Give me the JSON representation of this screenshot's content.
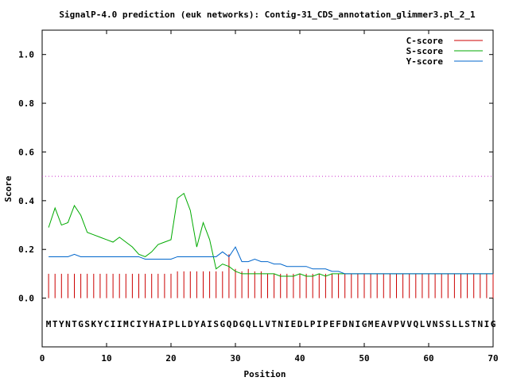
{
  "chart_data": {
    "type": "line",
    "title": "SignalP-4.0 prediction (euk networks): Contig-31_CDS_annotation_glimmer3.pl_2_1",
    "xlabel": "Position",
    "ylabel": "Score",
    "xlim": [
      0,
      70
    ],
    "ylim": [
      -0.2,
      1.1
    ],
    "xticks": [
      0,
      10,
      20,
      30,
      40,
      50,
      60,
      70
    ],
    "yticks": [
      0.0,
      0.2,
      0.4,
      0.6,
      0.8,
      1.0
    ],
    "ytick_labels": [
      "0.0",
      "0.2",
      "0.4",
      "0.6",
      "0.8",
      "1.0"
    ],
    "grid": false,
    "legend_position": "top-right",
    "threshold": 0.5,
    "threshold_color": "#cc33cc",
    "sequence": "MTYNTGSKYCIIMCIYHAIPLLDYAISGQDGQLLVTNIEDLPIPEFDNIGMEAVPVVQLVNSSLLSTNIG",
    "series": [
      {
        "name": "C-score",
        "style": "impulses",
        "color": "#cc0000",
        "values": [
          0.1,
          0.1,
          0.1,
          0.1,
          0.1,
          0.1,
          0.1,
          0.1,
          0.1,
          0.1,
          0.1,
          0.1,
          0.1,
          0.1,
          0.1,
          0.1,
          0.1,
          0.1,
          0.1,
          0.1,
          0.11,
          0.11,
          0.11,
          0.11,
          0.11,
          0.11,
          0.11,
          0.11,
          0.18,
          0.12,
          0.11,
          0.12,
          0.11,
          0.11,
          0.1,
          0.1,
          0.1,
          0.1,
          0.1,
          0.1,
          0.1,
          0.1,
          0.1,
          0.1,
          0.1,
          0.1,
          0.1,
          0.1,
          0.1,
          0.1,
          0.1,
          0.1,
          0.1,
          0.1,
          0.1,
          0.1,
          0.1,
          0.1,
          0.1,
          0.1,
          0.1,
          0.1,
          0.1,
          0.1,
          0.1,
          0.1,
          0.1,
          0.1,
          0.1,
          0.1
        ]
      },
      {
        "name": "S-score",
        "style": "line",
        "color": "#00aa00",
        "values": [
          0.29,
          0.37,
          0.3,
          0.31,
          0.38,
          0.34,
          0.27,
          0.26,
          0.25,
          0.24,
          0.23,
          0.25,
          0.23,
          0.21,
          0.18,
          0.17,
          0.19,
          0.22,
          0.23,
          0.24,
          0.41,
          0.43,
          0.36,
          0.21,
          0.31,
          0.24,
          0.12,
          0.14,
          0.13,
          0.11,
          0.1,
          0.1,
          0.1,
          0.1,
          0.1,
          0.1,
          0.09,
          0.09,
          0.09,
          0.1,
          0.09,
          0.09,
          0.1,
          0.09,
          0.1,
          0.1,
          0.1,
          0.1,
          0.1,
          0.1,
          0.1,
          0.1,
          0.1,
          0.1,
          0.1,
          0.1,
          0.1,
          0.1,
          0.1,
          0.1,
          0.1,
          0.1,
          0.1,
          0.1,
          0.1,
          0.1,
          0.1,
          0.1,
          0.1,
          0.1
        ]
      },
      {
        "name": "Y-score",
        "style": "line",
        "color": "#0066cc",
        "values": [
          0.17,
          0.17,
          0.17,
          0.17,
          0.18,
          0.17,
          0.17,
          0.17,
          0.17,
          0.17,
          0.17,
          0.17,
          0.17,
          0.17,
          0.17,
          0.16,
          0.16,
          0.16,
          0.16,
          0.16,
          0.17,
          0.17,
          0.17,
          0.17,
          0.17,
          0.17,
          0.17,
          0.19,
          0.17,
          0.21,
          0.15,
          0.15,
          0.16,
          0.15,
          0.15,
          0.14,
          0.14,
          0.13,
          0.13,
          0.13,
          0.13,
          0.12,
          0.12,
          0.12,
          0.11,
          0.11,
          0.1,
          0.1,
          0.1,
          0.1,
          0.1,
          0.1,
          0.1,
          0.1,
          0.1,
          0.1,
          0.1,
          0.1,
          0.1,
          0.1,
          0.1,
          0.1,
          0.1,
          0.1,
          0.1,
          0.1,
          0.1,
          0.1,
          0.1,
          0.1
        ]
      }
    ]
  }
}
